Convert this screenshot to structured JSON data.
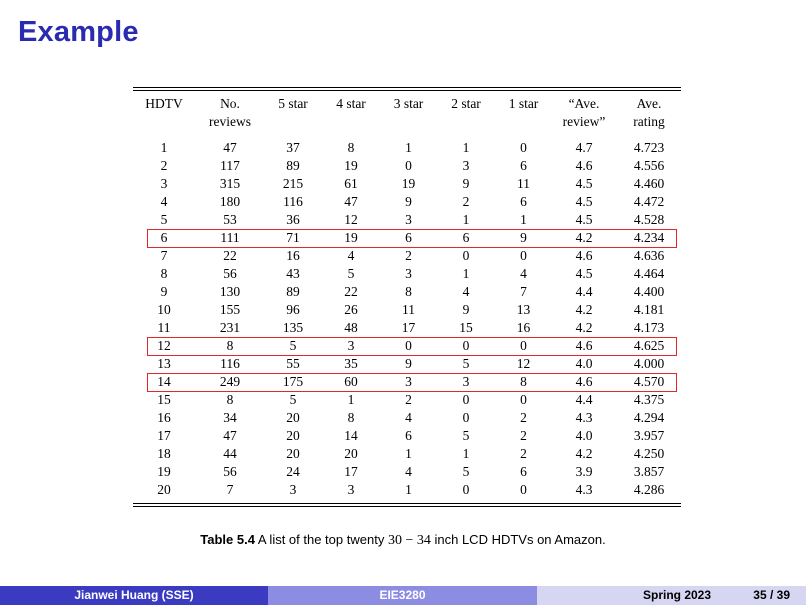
{
  "slide": {
    "title": "Example"
  },
  "table": {
    "headers": [
      [
        "HDTV"
      ],
      [
        "No.",
        "reviews"
      ],
      [
        "5 star"
      ],
      [
        "4 star"
      ],
      [
        "3 star"
      ],
      [
        "2 star"
      ],
      [
        "1 star"
      ],
      [
        "“Ave.",
        "review”"
      ],
      [
        "Ave.",
        "rating"
      ]
    ],
    "rows": [
      [
        "1",
        "47",
        "37",
        "8",
        "1",
        "1",
        "0",
        "4.7",
        "4.723"
      ],
      [
        "2",
        "117",
        "89",
        "19",
        "0",
        "3",
        "6",
        "4.6",
        "4.556"
      ],
      [
        "3",
        "315",
        "215",
        "61",
        "19",
        "9",
        "11",
        "4.5",
        "4.460"
      ],
      [
        "4",
        "180",
        "116",
        "47",
        "9",
        "2",
        "6",
        "4.5",
        "4.472"
      ],
      [
        "5",
        "53",
        "36",
        "12",
        "3",
        "1",
        "1",
        "4.5",
        "4.528"
      ],
      [
        "6",
        "111",
        "71",
        "19",
        "6",
        "6",
        "9",
        "4.2",
        "4.234"
      ],
      [
        "7",
        "22",
        "16",
        "4",
        "2",
        "0",
        "0",
        "4.6",
        "4.636"
      ],
      [
        "8",
        "56",
        "43",
        "5",
        "3",
        "1",
        "4",
        "4.5",
        "4.464"
      ],
      [
        "9",
        "130",
        "89",
        "22",
        "8",
        "4",
        "7",
        "4.4",
        "4.400"
      ],
      [
        "10",
        "155",
        "96",
        "26",
        "11",
        "9",
        "13",
        "4.2",
        "4.181"
      ],
      [
        "11",
        "231",
        "135",
        "48",
        "17",
        "15",
        "16",
        "4.2",
        "4.173"
      ],
      [
        "12",
        "8",
        "5",
        "3",
        "0",
        "0",
        "0",
        "4.6",
        "4.625"
      ],
      [
        "13",
        "116",
        "55",
        "35",
        "9",
        "5",
        "12",
        "4.0",
        "4.000"
      ],
      [
        "14",
        "249",
        "175",
        "60",
        "3",
        "3",
        "8",
        "4.6",
        "4.570"
      ],
      [
        "15",
        "8",
        "5",
        "1",
        "2",
        "0",
        "0",
        "4.4",
        "4.375"
      ],
      [
        "16",
        "34",
        "20",
        "8",
        "4",
        "0",
        "2",
        "4.3",
        "4.294"
      ],
      [
        "17",
        "47",
        "20",
        "14",
        "6",
        "5",
        "2",
        "4.0",
        "3.957"
      ],
      [
        "18",
        "44",
        "20",
        "20",
        "1",
        "1",
        "2",
        "4.2",
        "4.250"
      ],
      [
        "19",
        "56",
        "24",
        "17",
        "4",
        "5",
        "6",
        "3.9",
        "3.857"
      ],
      [
        "20",
        "7",
        "3",
        "3",
        "1",
        "0",
        "0",
        "4.3",
        "4.286"
      ]
    ],
    "highlighted_rows": [
      "6",
      "12",
      "14"
    ],
    "highlight_color": "#e0282a"
  },
  "caption": {
    "label": "Table 5.4",
    "text_before": "A list of the top twenty",
    "math": "30 − 34",
    "text_after": "inch LCD HDTVs on Amazon."
  },
  "footer": {
    "author": "Jianwei Huang (SSE)",
    "course": "EIE3280",
    "date": "Spring 2023",
    "page": "35 / 39"
  },
  "colors": {
    "title": "#2b2bb0",
    "footer_dark": "#3b3bc2",
    "footer_mid": "#8c8ce2",
    "footer_light": "#d6d6f2"
  }
}
